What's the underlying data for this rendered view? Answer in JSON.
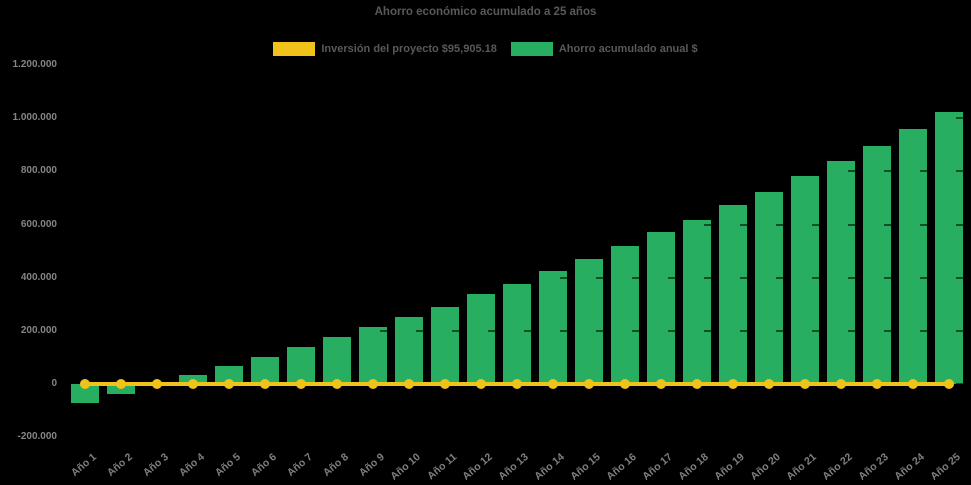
{
  "title": "Ahorro económico acumulado a 25 años",
  "legend": {
    "items": [
      {
        "label": "Inversión del proyecto $95,905.18",
        "color": "#efc31a"
      },
      {
        "label": "Ahorro acumulado anual $",
        "color": "#27ae60"
      }
    ]
  },
  "colors": {
    "background": "#000000",
    "bar": "#27ae60",
    "line": "#efc31a",
    "title_text": "#595959",
    "axis_text": "#858585"
  },
  "chart_data": {
    "type": "bar",
    "title": "Ahorro económico acumulado a 25 años",
    "categories": [
      "Año 1",
      "Año 2",
      "Año 3",
      "Año 4",
      "Año 5",
      "Año 6",
      "Año 7",
      "Año 8",
      "Año 9",
      "Año 10",
      "Año 11",
      "Año 12",
      "Año 13",
      "Año 14",
      "Año 15",
      "Año 16",
      "Año 17",
      "Año 18",
      "Año 19",
      "Año 20",
      "Año 21",
      "Año 22",
      "Año 23",
      "Año 24",
      "Año 25"
    ],
    "series": [
      {
        "name": "Ahorro acumulado anual $",
        "type": "bar",
        "color": "#27ae60",
        "values": [
          -70000,
          -38000,
          0,
          34000,
          68000,
          101000,
          139000,
          175000,
          215000,
          253000,
          291000,
          337000,
          378000,
          426000,
          472000,
          519000,
          571000,
          617000,
          674000,
          723000,
          782000,
          841000,
          897000,
          960000,
          1024000
        ]
      },
      {
        "name": "Inversión del proyecto $95,905.18",
        "type": "line",
        "color": "#efc31a",
        "investment_amount_label": "$95,905.18",
        "plotted_value": 0
      }
    ],
    "y_axis": {
      "min": -200000,
      "max": 1200000,
      "step": 200000,
      "tick_labels": [
        "1.200.000",
        "1.000.000",
        "800.000",
        "600.000",
        "400.000",
        "200.000",
        "0",
        "-200.000"
      ]
    },
    "x_axis": {
      "label_rotation_deg": -40
    },
    "legend_position": "top",
    "grid": "faint dashed dark ticks visible only over bars",
    "background": "#000000"
  }
}
